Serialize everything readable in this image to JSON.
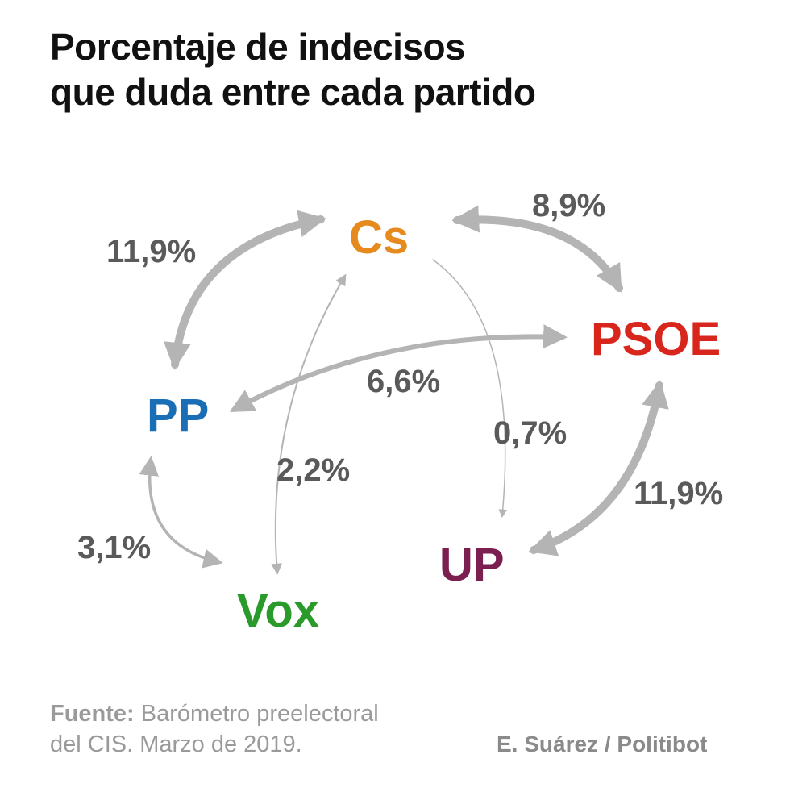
{
  "title": {
    "line1": "Porcentaje de indecisos",
    "line2": "que duda entre cada partido"
  },
  "parties": {
    "cs": {
      "name": "Cs",
      "color": "#e68a1e"
    },
    "psoe": {
      "name": "PSOE",
      "color": "#d9261c"
    },
    "pp": {
      "name": "PP",
      "color": "#1a6eb5"
    },
    "vox": {
      "name": "Vox",
      "color": "#2a9a2a"
    },
    "up": {
      "name": "UP",
      "color": "#7a1f4f"
    }
  },
  "links": {
    "pp_cs": "11,9%",
    "cs_psoe": "8,9%",
    "pp_psoe": "6,6%",
    "cs_up": "0,7%",
    "cs_vox": "2,2%",
    "psoe_up": "11,9%",
    "pp_vox": "3,1%"
  },
  "arrow_color": "#b4b4b4",
  "footer": {
    "source_label": "Fuente:",
    "source_text": " Barómetro preelectoral",
    "source_text2": "del CIS. Marzo de 2019.",
    "credit": "E. Suárez / Politibot"
  }
}
